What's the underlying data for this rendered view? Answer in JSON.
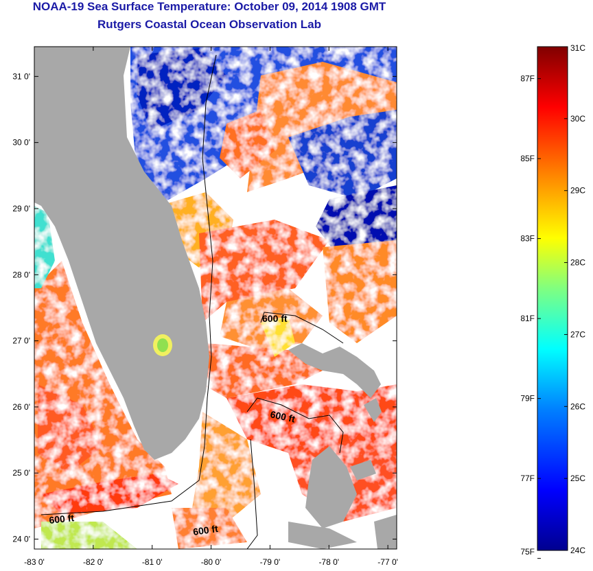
{
  "header": {
    "title": "NOAA-19 Sea Surface Temperature:  October 09, 2014 1908 GMT",
    "subtitle": "Rutgers Coastal Ocean Observation Lab"
  },
  "map": {
    "lon_range": [
      -83,
      -76.85
    ],
    "lat_range": [
      23.85,
      31.45
    ],
    "lon_ticks": [
      "-83 0'",
      "-82 0'",
      "-81 0'",
      "-80 0'",
      "-79 0'",
      "-78 0'",
      "-77 0'"
    ],
    "lat_ticks": [
      "24 0'",
      "25 0'",
      "26 0'",
      "27 0'",
      "28 0'",
      "29 0'",
      "30 0'",
      "31 0'"
    ],
    "contour_label": "600 ft",
    "colors": {
      "land": "#a8a8a8",
      "cloud": "#ffffff",
      "title": "#1a1aa6"
    }
  },
  "colorbar": {
    "celsius_labels": [
      "31C",
      "30C",
      "29C",
      "28C",
      "27C",
      "26C",
      "25C",
      "24C"
    ],
    "fahrenheit_labels": [
      "87F",
      "85F",
      "83F",
      "81F",
      "79F",
      "77F",
      "75F"
    ],
    "range_c": [
      24,
      31
    ]
  }
}
